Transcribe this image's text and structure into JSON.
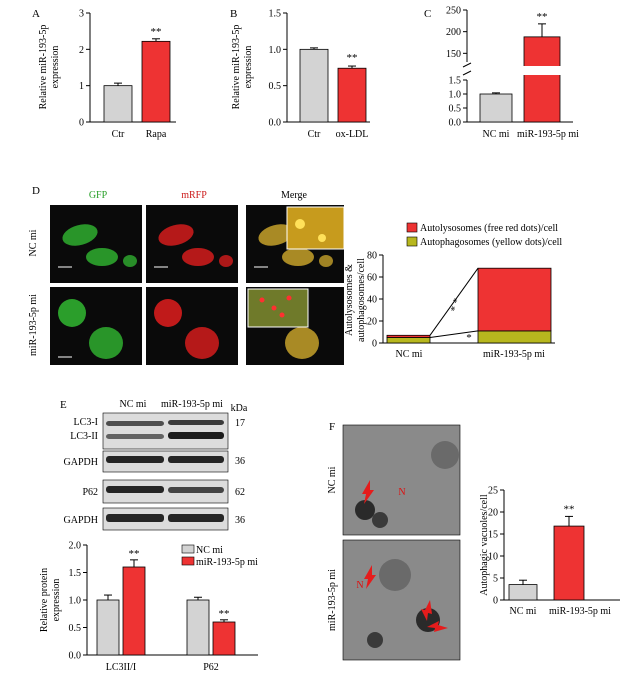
{
  "colors": {
    "gray": "#d3d3d3",
    "red": "#ee3333",
    "olive": "#b7b71e",
    "blot_bg": "#dcdcdc",
    "green_cell": "#2fae2f",
    "red_cell": "#d41c1c",
    "merge_cell": "#c6a12a"
  },
  "panels": {
    "A": {
      "letter": "A",
      "ylabel": "Relative miR-193-5p expression",
      "categories": [
        "Ctr",
        "Rapa"
      ],
      "values": [
        1.0,
        2.22
      ],
      "errors": [
        0.07,
        0.07
      ],
      "ylim": [
        0,
        3
      ],
      "yticks": [
        "0",
        "1",
        "2",
        "3"
      ],
      "sig": "**"
    },
    "B": {
      "letter": "B",
      "ylabel": "Relative miR-193-5p expression",
      "categories": [
        "Ctr",
        "ox-LDL"
      ],
      "values": [
        1.0,
        0.74
      ],
      "errors": [
        0.02,
        0.03
      ],
      "ylim": [
        0,
        1.5
      ],
      "yticks": [
        "0.0",
        "0.5",
        "1.0",
        "1.5"
      ],
      "sig": "**"
    },
    "C": {
      "letter": "C",
      "categories": [
        "NC mi",
        "miR-193-5p mi"
      ],
      "values": [
        1.0,
        188
      ],
      "errors": [
        0.04,
        30
      ],
      "yticks_low": [
        "0.0",
        "0.5",
        "1.0",
        "1.5"
      ],
      "yticks_high": [
        "150",
        "200",
        "250"
      ],
      "sig": "**"
    },
    "D": {
      "letter": "D",
      "cols": [
        "GFP",
        "mRFP",
        "Merge"
      ],
      "rows": [
        "NC mi",
        "miR-193-5p mi"
      ],
      "legend": [
        "Autolysosomes (free red dots)/cell",
        "Autophagosomes (yellow dots)/cell"
      ],
      "ylabel": "Autolysosomes & autophagosomes/cell",
      "categories": [
        "NC mi",
        "miR-193-5p mi"
      ],
      "autolysosomes": [
        2,
        57
      ],
      "autophagosomes": [
        5,
        11
      ],
      "ylim": [
        0,
        80
      ],
      "yticks": [
        "0",
        "20",
        "40",
        "60",
        "80"
      ],
      "sig_upper": "* *",
      "sig_lower": "*"
    },
    "E": {
      "letter": "E",
      "lanes": [
        "NC mi",
        "miR-193-5p mi"
      ],
      "kda_label": "kDa",
      "bands": [
        {
          "label": "LC3-I",
          "kda": "17"
        },
        {
          "label": "LC3-II",
          "kda": ""
        },
        {
          "label": "GAPDH",
          "kda": "36"
        },
        {
          "label": "P62",
          "kda": "62"
        },
        {
          "label": "GAPDH",
          "kda": "36"
        }
      ],
      "ylabel": "Relative protein expression",
      "categories": [
        "LC3II/I",
        "P62"
      ],
      "series": [
        {
          "name": "NC mi",
          "values": [
            1.0,
            1.0
          ],
          "errors": [
            0.09,
            0.05
          ]
        },
        {
          "name": "miR-193-5p mi",
          "values": [
            1.6,
            0.6
          ],
          "errors": [
            0.13,
            0.04
          ]
        }
      ],
      "ylim": [
        0,
        2.0
      ],
      "yticks": [
        "0.0",
        "0.5",
        "1.0",
        "1.5",
        "2.0"
      ],
      "sig": [
        "**",
        "**"
      ]
    },
    "F": {
      "letter": "F",
      "rows": [
        "NC mi",
        "miR-193-5p mi"
      ],
      "n_label": "N",
      "ylabel": "Autophagic vacuoles/cell",
      "categories": [
        "NC mi",
        "miR-193-5p mi"
      ],
      "values": [
        3.5,
        16.8
      ],
      "errors": [
        1.0,
        2.2
      ],
      "ylim": [
        0,
        25
      ],
      "yticks": [
        "0",
        "5",
        "10",
        "15",
        "20",
        "25"
      ],
      "sig": "**"
    }
  },
  "chart_data": [
    {
      "type": "bar",
      "title": "",
      "categories": [
        "Ctr",
        "Rapa"
      ],
      "values": [
        1.0,
        2.22
      ],
      "ylabel": "Relative miR-193-5p expression",
      "ylim": [
        0,
        3
      ]
    },
    {
      "type": "bar",
      "title": "",
      "categories": [
        "Ctr",
        "ox-LDL"
      ],
      "values": [
        1.0,
        0.74
      ],
      "ylabel": "Relative miR-193-5p expression",
      "ylim": [
        0,
        1.5
      ]
    },
    {
      "type": "bar",
      "title": "",
      "categories": [
        "NC mi",
        "miR-193-5p mi"
      ],
      "values": [
        1.0,
        188
      ],
      "ylim": [
        0,
        250
      ]
    },
    {
      "type": "bar",
      "title": "",
      "categories": [
        "NC mi",
        "miR-193-5p mi"
      ],
      "series": [
        {
          "name": "Autophagosomes (yellow dots)/cell",
          "values": [
            5,
            11
          ]
        },
        {
          "name": "Autolysosomes (free red dots)/cell",
          "values": [
            2,
            57
          ]
        }
      ],
      "ylabel": "Autolysosomes & autophagosomes/cell",
      "ylim": [
        0,
        80
      ]
    },
    {
      "type": "bar",
      "title": "",
      "categories": [
        "LC3II/I",
        "P62"
      ],
      "series": [
        {
          "name": "NC mi",
          "values": [
            1.0,
            1.0
          ]
        },
        {
          "name": "miR-193-5p mi",
          "values": [
            1.6,
            0.6
          ]
        }
      ],
      "ylabel": "Relative protein expression",
      "ylim": [
        0,
        2.0
      ]
    },
    {
      "type": "bar",
      "title": "",
      "categories": [
        "NC mi",
        "miR-193-5p mi"
      ],
      "values": [
        3.5,
        16.8
      ],
      "ylabel": "Autophagic vacuoles/cell",
      "ylim": [
        0,
        25
      ]
    }
  ]
}
